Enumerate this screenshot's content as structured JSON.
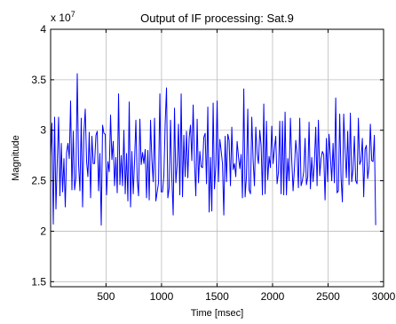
{
  "chart_data": {
    "type": "line",
    "title": "Output of IF processing: Sat.9",
    "xlabel": "Time [msec]",
    "ylabel": "Magnitude",
    "y_exponent_label": "x 10",
    "y_exponent_power": "7",
    "xlim": [
      1,
      3000
    ],
    "ylim": [
      1.45,
      4.0
    ],
    "x_ticks": [
      500,
      1000,
      1500,
      2000,
      2500,
      3000
    ],
    "x_tick_labels": [
      "500",
      "1000",
      "1500",
      "2000",
      "2500",
      "3000"
    ],
    "y_ticks": [
      1.5,
      2,
      2.5,
      3,
      3.5,
      4
    ],
    "y_tick_labels": [
      "1.5",
      "2",
      "2.5",
      "3",
      "3.5",
      "4"
    ],
    "grid": true,
    "series": [
      {
        "color": "#0000ff",
        "x_start": 1,
        "x_step": 12,
        "values": [
          2.74,
          3.07,
          2.07,
          3.13,
          2.22,
          2.7,
          3.13,
          2.35,
          2.87,
          2.39,
          2.72,
          2.24,
          2.78,
          2.87,
          2.72,
          3.29,
          2.41,
          2.99,
          2.41,
          2.53,
          3.56,
          2.66,
          2.4,
          3.12,
          2.24,
          2.97,
          3.21,
          2.69,
          2.54,
          2.98,
          2.33,
          2.94,
          2.67,
          2.67,
          2.95,
          2.99,
          2.4,
          2.77,
          2.06,
          3.05,
          2.97,
          2.96,
          2.36,
          2.69,
          2.59,
          3.15,
          2.71,
          2.89,
          2.45,
          2.73,
          2.38,
          3.36,
          2.46,
          2.75,
          2.45,
          3.0,
          2.37,
          2.77,
          2.3,
          3.28,
          2.24,
          2.79,
          2.37,
          2.69,
          3.1,
          2.52,
          2.35,
          3.11,
          2.66,
          2.78,
          2.67,
          2.81,
          2.33,
          2.8,
          2.31,
          3.1,
          2.71,
          2.49,
          3.12,
          2.3,
          2.39,
          2.48,
          3.36,
          2.39,
          2.39,
          2.55,
          3.07,
          3.42,
          2.33,
          2.43,
          3.1,
          2.53,
          2.16,
          3.22,
          2.48,
          2.66,
          3.06,
          2.36,
          3.36,
          2.34,
          2.95,
          2.54,
          2.99,
          2.53,
          2.93,
          3.05,
          2.7,
          3.25,
          2.69,
          2.35,
          3.11,
          2.48,
          2.79,
          2.64,
          2.63,
          2.93,
          2.97,
          2.47,
          3.23,
          2.19,
          2.73,
          2.2,
          3.27,
          2.42,
          2.65,
          3.29,
          2.49,
          2.91,
          2.8,
          2.67,
          2.16,
          2.94,
          2.49,
          2.96,
          2.9,
          2.45,
          3.03,
          2.61,
          2.67,
          2.54,
          2.89,
          2.74,
          2.62,
          2.76,
          2.33,
          3.41,
          2.34,
          2.54,
          3.21,
          2.41,
          2.37,
          3.13,
          2.7,
          2.45,
          3.03,
          2.77,
          2.67,
          3.0,
          2.85,
          2.36,
          3.26,
          2.37,
          3.09,
          2.51,
          2.74,
          2.63,
          3.04,
          2.67,
          2.82,
          2.94,
          2.47,
          2.58,
          3.09,
          2.37,
          3.09,
          2.36,
          3.18,
          2.36,
          2.72,
          2.5,
          3.12,
          2.7,
          2.4,
          2.62,
          2.9,
          2.76,
          2.43,
          3.12,
          2.45,
          2.5,
          2.59,
          2.92,
          2.46,
          2.54,
          3.08,
          2.42,
          2.73,
          2.49,
          2.68,
          3.03,
          2.45,
          3.1,
          2.55,
          2.72,
          2.79,
          2.76,
          2.31,
          2.92,
          2.49,
          2.96,
          2.74,
          2.5,
          2.87,
          2.48,
          3.32,
          2.38,
          2.4,
          3.16,
          2.53,
          2.29,
          3.16,
          2.81,
          2.53,
          2.99,
          2.46,
          3.17,
          2.49,
          2.61,
          2.94,
          2.5,
          2.47,
          3.12,
          2.66,
          2.7,
          2.92,
          2.34,
          2.81,
          2.85,
          2.52,
          2.64,
          3.06,
          2.7,
          2.69,
          2.95,
          2.06
        ]
      }
    ]
  }
}
